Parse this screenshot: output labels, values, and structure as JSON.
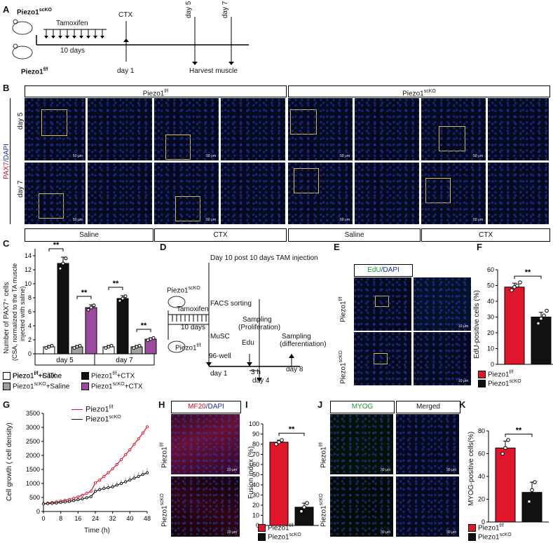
{
  "panels": {
    "A": "A",
    "B": "B",
    "C": "C",
    "D": "D",
    "E": "E",
    "F": "F",
    "G": "G",
    "H": "H",
    "I": "I",
    "J": "J",
    "K": "K"
  },
  "panelA": {
    "mouse_top": "Piezo1",
    "mouse_top_sup": "scKO",
    "mouse_bottom": "Piezo1",
    "mouse_bottom_sup": "f/f",
    "tamoxifen": "Tamoxifen",
    "ten_days": "10 days",
    "ctx": "CTX",
    "day1": "day 1",
    "day5": "day 5",
    "day7": "day 7",
    "harvest": "Harvest muscle"
  },
  "panelB": {
    "header_left": "Piezo1",
    "header_left_sup": "f/f",
    "header_right": "Piezo1",
    "header_right_sup": "scKO",
    "stain_red": "PAX7",
    "stain_blue": "/DAPI",
    "row1": "day 5",
    "row2": "day 7",
    "scale": "50 μm",
    "bottom_labels": [
      "Saline",
      "CTX",
      "Saline",
      "CTX"
    ]
  },
  "panelC": {
    "ylabel1": "Number of PAX7⁺ cells",
    "ylabel2": "(CSA, normalized to the TA muscle",
    "ylabel3": "injected with saline)",
    "groups": [
      "day 5",
      "day 7"
    ],
    "yticks": [
      "0",
      "2",
      "4",
      "6",
      "8",
      "10",
      "12",
      "14"
    ],
    "sig": "**",
    "legend": [
      {
        "label": "Piezo1",
        "sup": "f/f",
        "suffix": "+Saline",
        "color": "#ffffff"
      },
      {
        "label": "Piezo1",
        "sup": "f/f",
        "suffix": "+CTX",
        "color": "#111111"
      },
      {
        "label": "Piezo1",
        "sup": "scKO",
        "suffix": "+Saline",
        "color": "#a0a0a0"
      },
      {
        "label": "Piezo1",
        "sup": "scKO",
        "suffix": "+CTX",
        "color": "#9b4aa0"
      }
    ]
  },
  "panelD": {
    "title": "Day 10 post 10 days TAM injection",
    "mouse_top": "Piezo1",
    "mouse_top_sup": "scKO",
    "mouse_bottom": "Piezo1",
    "mouse_bottom_sup": "f/f",
    "tamoxifen": "Tamoxifen",
    "ten_days": "10 days",
    "facs": "FACS sorting",
    "musc": "MuSC",
    "well": "96-well",
    "sampling1": "Sampling",
    "proliferation": "(Proliferation)",
    "sampling2": "Sampling",
    "differentiation": "(differentiation)",
    "edu": "Edu",
    "three_h": "3 h",
    "day1": "day 1",
    "day4": "day 4",
    "day8": "day 8"
  },
  "panelE": {
    "stain_green": "EdU",
    "stain_blue": "/DAPI",
    "row1": "Piezo1",
    "row1_sup": "f/f",
    "row2": "Piezo1",
    "row2_sup": "scKO",
    "scale": "10 μm"
  },
  "panelF": {
    "ylabel": "EdU-positive cells (%)",
    "yticks": [
      "0",
      "10",
      "20",
      "30",
      "40",
      "50",
      "60"
    ],
    "sig": "**",
    "legend": [
      {
        "label": "Piezo1",
        "sup": "f/f",
        "color": "#e0162b"
      },
      {
        "label": "Piezo1",
        "sup": "scKO",
        "color": "#111111"
      }
    ]
  },
  "panelG": {
    "ylabel": "Cell growth ( cell density)",
    "xlabel": "Time (h)",
    "xticks": [
      "0",
      "8",
      "16",
      "24",
      "32",
      "40",
      "48"
    ],
    "yticks": [
      "0",
      "500",
      "1000",
      "1500",
      "2000",
      "2500",
      "3000",
      "3500"
    ],
    "legend": [
      {
        "label": "Piezo1",
        "sup": "f/f",
        "color": "#e0162b"
      },
      {
        "label": "Piezo1",
        "sup": "scKO",
        "color": "#111111"
      }
    ]
  },
  "panelH": {
    "stain_red": "MF20",
    "stain_blue": "/DAPI",
    "row1": "Piezo1",
    "row1_sup": "f/f",
    "row2": "Piezo1",
    "row2_sup": "scKO",
    "scale": "20 μm"
  },
  "panelI": {
    "ylabel": "Fusion index (%)",
    "yticks": [
      "0",
      "10",
      "20",
      "30",
      "40",
      "50",
      "60",
      "70",
      "80",
      "90",
      "100"
    ],
    "sig": "**",
    "legend": [
      {
        "label": "Piezo1",
        "sup": "f/f",
        "color": "#e0162b"
      },
      {
        "label": "Piezo1",
        "sup": "scKO",
        "color": "#111111"
      }
    ]
  },
  "panelJ": {
    "header1": "MYOG",
    "header2": "Merged",
    "row1": "Piezo1",
    "row1_sup": "f/f",
    "row2": "Piezo1",
    "row2_sup": "scKO",
    "scale": "30 μm"
  },
  "panelK": {
    "ylabel": "MYOG-positive cells(%)",
    "yticks": [
      "0",
      "20",
      "40",
      "60",
      "80"
    ],
    "sig": "**",
    "legend": [
      {
        "label": "Piezo1",
        "sup": "f/f",
        "color": "#e0162b"
      },
      {
        "label": "Piezo1",
        "sup": "scKO",
        "color": "#111111"
      }
    ]
  },
  "chart_data": [
    {
      "id": "C",
      "type": "bar",
      "categories": [
        "day 5",
        "day 7"
      ],
      "series": [
        {
          "name": "Piezo1f/f+Saline",
          "values": [
            1.0,
            1.0
          ],
          "color": "#ffffff"
        },
        {
          "name": "Piezo1f/f+CTX",
          "values": [
            12.9,
            7.9
          ],
          "color": "#111111"
        },
        {
          "name": "Piezo1scKO+Saline",
          "values": [
            1.0,
            1.0
          ],
          "color": "#a0a0a0"
        },
        {
          "name": "Piezo1scKO+CTX",
          "values": [
            6.6,
            2.1
          ],
          "color": "#9b4aa0"
        }
      ],
      "errors": [
        [
          0.2,
          0.2
        ],
        [
          0.9,
          0.4
        ],
        [
          0.2,
          0.2
        ],
        [
          0.4,
          0.2
        ]
      ],
      "ylim": [
        0,
        15
      ]
    },
    {
      "id": "F",
      "type": "bar",
      "categories": [
        "Piezo1f/f",
        "Piezo1scKO"
      ],
      "values": [
        49,
        30
      ],
      "errors": [
        2.5,
        3
      ],
      "points": [
        [
          47,
          49,
          50,
          52
        ],
        [
          26,
          29,
          31,
          34
        ]
      ],
      "colors": [
        "#e0162b",
        "#111111"
      ],
      "ylim": [
        0,
        60
      ]
    },
    {
      "id": "G",
      "type": "line",
      "x": [
        0,
        2,
        4,
        6,
        8,
        10,
        12,
        14,
        16,
        18,
        20,
        22,
        24,
        26,
        28,
        30,
        32,
        34,
        36,
        38,
        40,
        42,
        44,
        46,
        48
      ],
      "series": [
        {
          "name": "Piezo1f/f",
          "color": "#e0162b",
          "values": [
            280,
            300,
            320,
            340,
            370,
            400,
            430,
            470,
            520,
            580,
            650,
            720,
            1020,
            1120,
            1250,
            1380,
            1520,
            1680,
            1850,
            2030,
            2200,
            2400,
            2590,
            2800,
            3020
          ]
        },
        {
          "name": "Piezo1scKO",
          "color": "#111111",
          "values": [
            270,
            280,
            290,
            300,
            320,
            340,
            360,
            390,
            420,
            450,
            490,
            530,
            720,
            780,
            820,
            850,
            880,
            940,
            1000,
            1060,
            1120,
            1190,
            1250,
            1320,
            1380
          ]
        }
      ],
      "ylim": [
        0,
        3500
      ],
      "xlim": [
        0,
        48
      ]
    },
    {
      "id": "I",
      "type": "bar",
      "categories": [
        "Piezo1f/f",
        "Piezo1scKO"
      ],
      "values": [
        82,
        18
      ],
      "errors": [
        2,
        4
      ],
      "points": [
        [
          80,
          82,
          84
        ],
        [
          14,
          18,
          22
        ]
      ],
      "colors": [
        "#e0162b",
        "#111111"
      ],
      "ylim": [
        0,
        100
      ]
    },
    {
      "id": "K",
      "type": "bar",
      "categories": [
        "Piezo1f/f",
        "Piezo1scKO"
      ],
      "values": [
        65,
        26
      ],
      "errors": [
        6,
        9
      ],
      "points": [
        [
          60,
          65,
          72
        ],
        [
          18,
          28,
          35
        ]
      ],
      "colors": [
        "#e0162b",
        "#111111"
      ],
      "ylim": [
        0,
        80
      ]
    }
  ]
}
